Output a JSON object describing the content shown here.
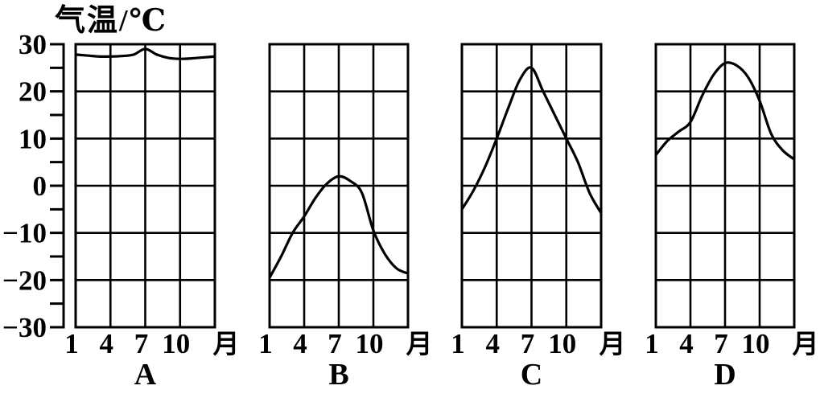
{
  "figure": {
    "title": "气温/℃"
  },
  "labels": {
    "y_ticks": [
      "30",
      "20",
      "10",
      "0",
      "−10",
      "−20",
      "−30"
    ],
    "x_ticks": [
      "1",
      "4",
      "7",
      "10"
    ],
    "month_unit": "月"
  },
  "chart_data": {
    "type": "line",
    "title": "气温/℃",
    "ylabel": "气温/℃",
    "xlabel": "月",
    "ylim": [
      -30,
      30
    ],
    "ytick_major_step": 10,
    "ytick_minor_step": 5,
    "xticks": [
      1,
      4,
      7,
      10
    ],
    "months": [
      1,
      2,
      3,
      4,
      5,
      6,
      7,
      8,
      9,
      10,
      11,
      12
    ],
    "grid": true,
    "legend": "none",
    "line_color": "#000000",
    "background_color": "#ffffff",
    "x_note": "Each panel runs from January at the left border to the following January at the right border; ticks at months 1, 4, 7, 10 are equally spaced.",
    "panels": [
      {
        "name": "A",
        "values": [
          27.8,
          27.6,
          27.4,
          27.4,
          27.5,
          27.8,
          29,
          27.8,
          27.1,
          26.9,
          27,
          27.2
        ],
        "edge_value": 27.4
      },
      {
        "name": "B",
        "values": [
          -19.5,
          -15,
          -10,
          -6.5,
          -2.5,
          0.5,
          2,
          1,
          -1.5,
          -9.5,
          -14.5,
          -17.5
        ],
        "edge_value": -18.6
      },
      {
        "name": "C",
        "values": [
          -5,
          -1,
          4,
          10,
          16.5,
          22.5,
          25,
          20,
          15,
          10,
          5,
          -1.5
        ],
        "edge_value": -5.8
      },
      {
        "name": "D",
        "values": [
          6.5,
          9.5,
          11.5,
          13.5,
          19,
          23.5,
          26,
          25.5,
          23,
          18,
          11,
          7.5
        ],
        "edge_value": 5.6
      }
    ]
  }
}
